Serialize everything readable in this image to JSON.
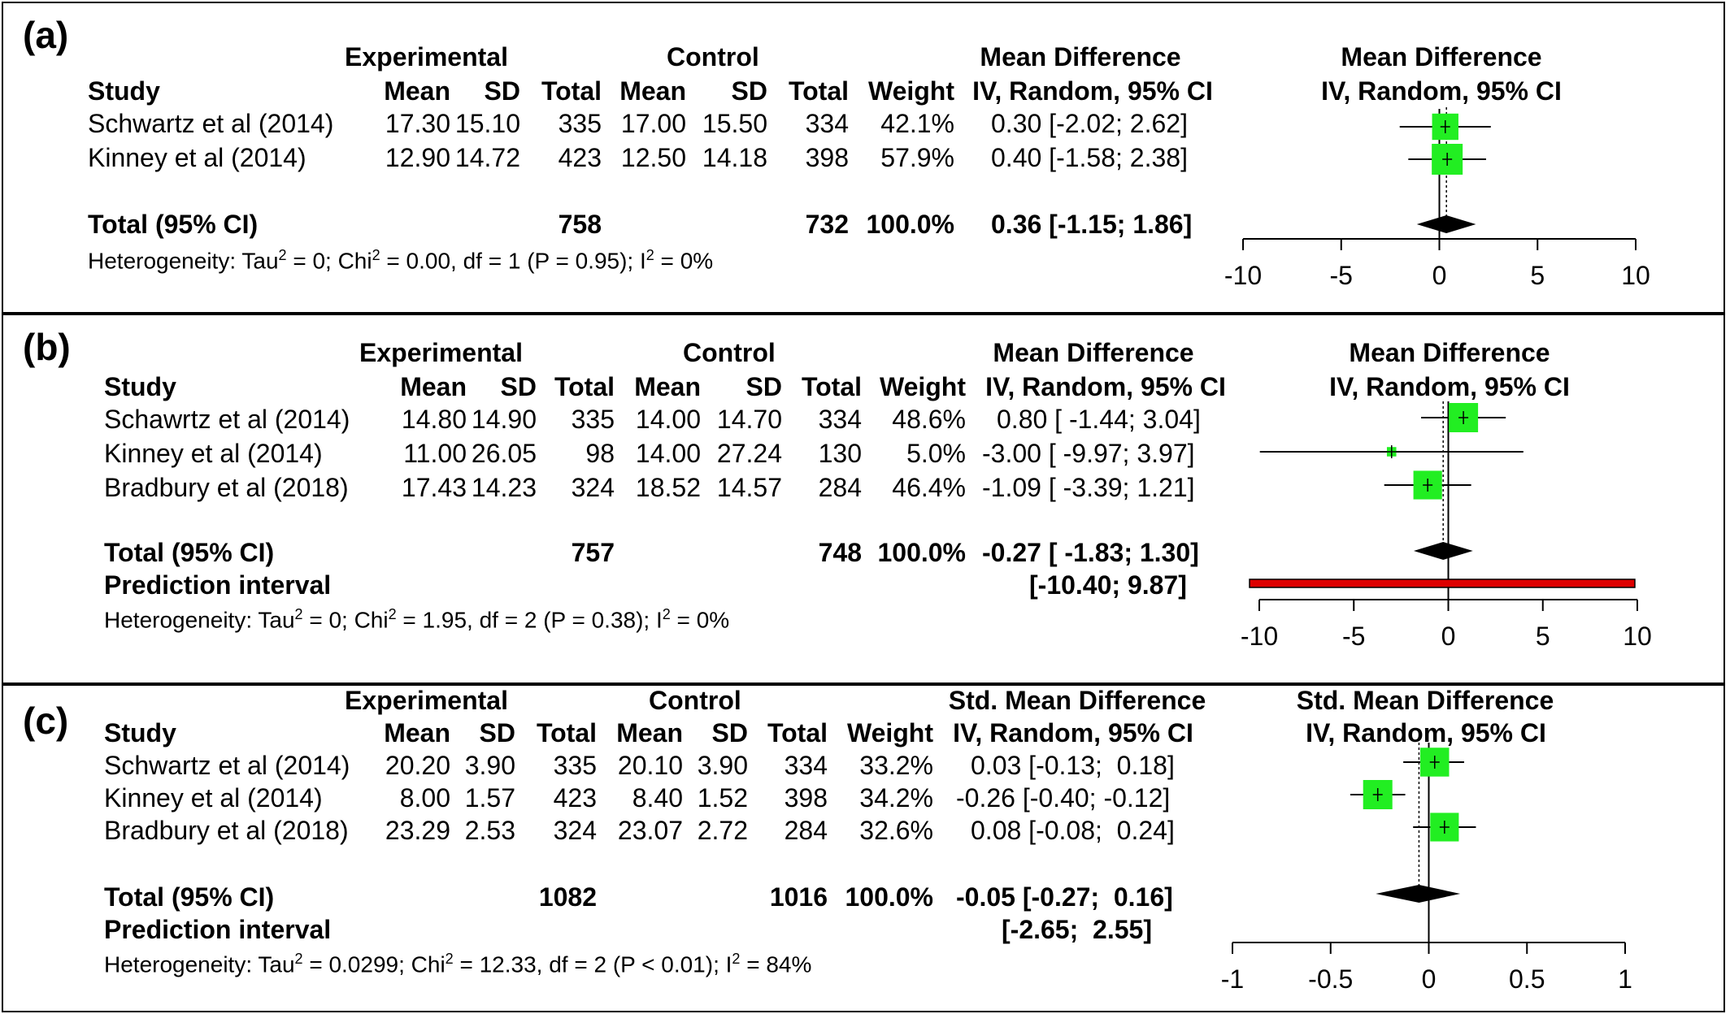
{
  "chart_data": [
    {
      "type": "forest",
      "panel_label": "(a)",
      "headers": {
        "study": "Study",
        "experimental": "Experimental",
        "control": "Control",
        "mean": "Mean",
        "sd": "SD",
        "total": "Total",
        "weight": "Weight",
        "effect_title": "Mean Difference",
        "effect_method": "IV, Random, 95% CI",
        "plot_title": "Mean Difference",
        "plot_method": "IV, Random, 95% CI"
      },
      "studies": [
        {
          "name": "Schwartz et al (2014)",
          "exp_mean": "17.30",
          "exp_sd": "15.10",
          "exp_total": "335",
          "ctrl_mean": "17.00",
          "ctrl_sd": "15.50",
          "ctrl_total": "334",
          "weight": "42.1%",
          "ci_text": "0.30 [-2.02; 2.62]",
          "md": 0.3,
          "lower": -2.02,
          "upper": 2.62,
          "weight_value": 42.1
        },
        {
          "name": "Kinney et al (2014)",
          "exp_mean": "12.90",
          "exp_sd": "14.72",
          "exp_total": "423",
          "ctrl_mean": "12.50",
          "ctrl_sd": "14.18",
          "ctrl_total": "398",
          "weight": "57.9%",
          "ci_text": "0.40 [-1.58; 2.38]",
          "md": 0.4,
          "lower": -1.58,
          "upper": 2.38,
          "weight_value": 57.9
        }
      ],
      "total": {
        "label": "Total (95% CI)",
        "exp_total": "758",
        "ctrl_total": "732",
        "weight": "100.0%",
        "ci_text": "0.36 [-1.15; 1.86]",
        "md": 0.36,
        "lower": -1.15,
        "upper": 1.86
      },
      "prediction": null,
      "heterogeneity": {
        "prefix": "Heterogeneity: Tau",
        "tau": " = 0; Chi",
        "chi": " = 0.00, df = 1 (P = 0.95); I",
        "i2": " = 0%",
        "sup": "2"
      },
      "xlim": [
        -10,
        10
      ],
      "ticks": [
        "-10",
        "-5",
        "0",
        "5",
        "10"
      ],
      "tick_values": [
        -10,
        -5,
        0,
        5,
        10
      ]
    },
    {
      "type": "forest",
      "panel_label": "(b)",
      "headers": {
        "study": "Study",
        "experimental": "Experimental",
        "control": "Control",
        "mean": "Mean",
        "sd": "SD",
        "total": "Total",
        "weight": "Weight",
        "effect_title": "Mean Difference",
        "effect_method": "IV, Random, 95% CI",
        "plot_title": "Mean Difference",
        "plot_method": "IV, Random, 95% CI"
      },
      "studies": [
        {
          "name": "Schawrtz et al (2014)",
          "exp_mean": "14.80",
          "exp_sd": "14.90",
          "exp_total": "335",
          "ctrl_mean": "14.00",
          "ctrl_sd": "14.70",
          "ctrl_total": "334",
          "weight": "48.6%",
          "ci_text": "0.80 [ -1.44; 3.04]",
          "md": 0.8,
          "lower": -1.44,
          "upper": 3.04,
          "weight_value": 48.6
        },
        {
          "name": "Kinney et al (2014)",
          "exp_mean": "11.00",
          "exp_sd": "26.05",
          "exp_total": "98",
          "ctrl_mean": "14.00",
          "ctrl_sd": "27.24",
          "ctrl_total": "130",
          "weight": "5.0%",
          "ci_text": "-3.00 [ -9.97; 3.97]",
          "md": -3.0,
          "lower": -9.97,
          "upper": 3.97,
          "weight_value": 5.0
        },
        {
          "name": "Bradbury et al (2018)",
          "exp_mean": "17.43",
          "exp_sd": "14.23",
          "exp_total": "324",
          "ctrl_mean": "18.52",
          "ctrl_sd": "14.57",
          "ctrl_total": "284",
          "weight": "46.4%",
          "ci_text": "-1.09 [ -3.39; 1.21]",
          "md": -1.09,
          "lower": -3.39,
          "upper": 1.21,
          "weight_value": 46.4
        }
      ],
      "total": {
        "label": "Total (95% CI)",
        "exp_total": "757",
        "ctrl_total": "748",
        "weight": "100.0%",
        "ci_text": "-0.27 [ -1.83; 1.30]",
        "md": -0.27,
        "lower": -1.83,
        "upper": 1.3
      },
      "prediction": {
        "label": "Prediction interval",
        "ci_text": "[-10.40; 9.87]",
        "lower": -10.4,
        "upper": 9.87
      },
      "heterogeneity": {
        "prefix": "Heterogeneity: Tau",
        "tau": " = 0; Chi",
        "chi": " = 1.95, df = 2 (P = 0.38); I",
        "i2": " = 0%",
        "sup": "2"
      },
      "xlim": [
        -10,
        10
      ],
      "ticks": [
        "-10",
        "-5",
        "0",
        "5",
        "10"
      ],
      "tick_values": [
        -10,
        -5,
        0,
        5,
        10
      ]
    },
    {
      "type": "forest",
      "panel_label": "(c)",
      "headers": {
        "study": "Study",
        "experimental": "Experimental",
        "control": "Control",
        "mean": "Mean",
        "sd": "SD",
        "total": "Total",
        "weight": "Weight",
        "effect_title": "Std. Mean Difference",
        "effect_method": "IV, Random, 95% CI",
        "plot_title": "Std. Mean Difference",
        "plot_method": "IV, Random, 95% CI"
      },
      "studies": [
        {
          "name": "Schwartz et al (2014)",
          "exp_mean": "20.20",
          "exp_sd": "3.90",
          "exp_total": "335",
          "ctrl_mean": "20.10",
          "ctrl_sd": "3.90",
          "ctrl_total": "334",
          "weight": "33.2%",
          "ci_text": "0.03 [-0.13;  0.18]",
          "md": 0.03,
          "lower": -0.13,
          "upper": 0.18,
          "weight_value": 33.2
        },
        {
          "name": "Kinney et al (2014)",
          "exp_mean": "8.00",
          "exp_sd": "1.57",
          "exp_total": "423",
          "ctrl_mean": "8.40",
          "ctrl_sd": "1.52",
          "ctrl_total": "398",
          "weight": "34.2%",
          "ci_text": "-0.26 [-0.40; -0.12]",
          "md": -0.26,
          "lower": -0.4,
          "upper": -0.12,
          "weight_value": 34.2
        },
        {
          "name": "Bradbury et al (2018)",
          "exp_mean": "23.29",
          "exp_sd": "2.53",
          "exp_total": "324",
          "ctrl_mean": "23.07",
          "ctrl_sd": "2.72",
          "ctrl_total": "284",
          "weight": "32.6%",
          "ci_text": "0.08 [-0.08;  0.24]",
          "md": 0.08,
          "lower": -0.08,
          "upper": 0.24,
          "weight_value": 32.6
        }
      ],
      "total": {
        "label": "Total (95% CI)",
        "exp_total": "1082",
        "ctrl_total": "1016",
        "weight": "100.0%",
        "ci_text": "-0.05 [-0.27;  0.16]",
        "md": -0.05,
        "lower": -0.27,
        "upper": 0.16
      },
      "prediction": {
        "label": "Prediction interval",
        "ci_text": "[-2.65;  2.55]",
        "lower": -2.65,
        "upper": 2.55
      },
      "heterogeneity": {
        "prefix": "Heterogeneity: Tau",
        "tau": " = 0.0299; Chi",
        "chi": " = 12.33, df = 2 (P < 0.01); I",
        "i2": " = 84%",
        "sup": "2"
      },
      "xlim": [
        -1,
        1
      ],
      "ticks": [
        "-1",
        "-0.5",
        "0",
        "0.5",
        "1"
      ],
      "tick_values": [
        -1,
        -0.5,
        0,
        0.5,
        1
      ]
    }
  ],
  "colors": {
    "square": "#22ee22",
    "diamond": "#000000",
    "prediction_bar": "#dd0000",
    "line": "#000000"
  }
}
